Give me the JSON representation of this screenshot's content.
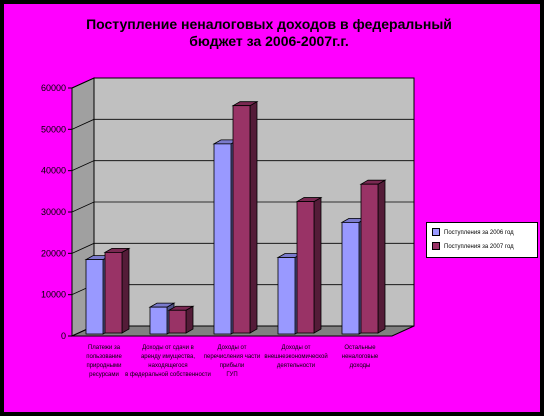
{
  "chart_data": {
    "type": "bar",
    "title": "Поступление неналоговых доходов в федеральный бюджет за 2006-2007г.г.",
    "title_lines": [
      "Поступление неналоговых доходов в федеральный",
      "бюджет за 2006-2007г.г."
    ],
    "categories": [
      [
        "Платежи за",
        "пользование",
        "природными",
        "ресурсами"
      ],
      [
        "Доходы от сдачи в",
        "аренду имущества,",
        "находящегося",
        "в федеральной собственности"
      ],
      [
        "Доходы от",
        "перечисления части",
        "прибыли",
        "ГУП"
      ],
      [
        "Доходы от",
        "внешнеэкономической",
        "деятельности"
      ],
      [
        "Остальные",
        "неналоговые",
        "доходы"
      ]
    ],
    "series": [
      {
        "name": "Поступления за 2006 год",
        "color": "#9999ff",
        "values": [
          18000,
          6500,
          46000,
          18500,
          27000
        ]
      },
      {
        "name": "Поступления за 2007 год",
        "color": "#993366",
        "values": [
          19500,
          5500,
          55000,
          31800,
          36000
        ]
      }
    ],
    "y_ticks": [
      "0",
      "10000",
      "20000",
      "30000",
      "40000",
      "50000",
      "60000"
    ],
    "ylim": [
      0,
      60000
    ],
    "grid": true,
    "legend_position": "right",
    "style": {
      "background": "#ff00ff",
      "plot_wall": "#c0c0c0",
      "floor": "#808080",
      "frame": "#000000"
    }
  }
}
